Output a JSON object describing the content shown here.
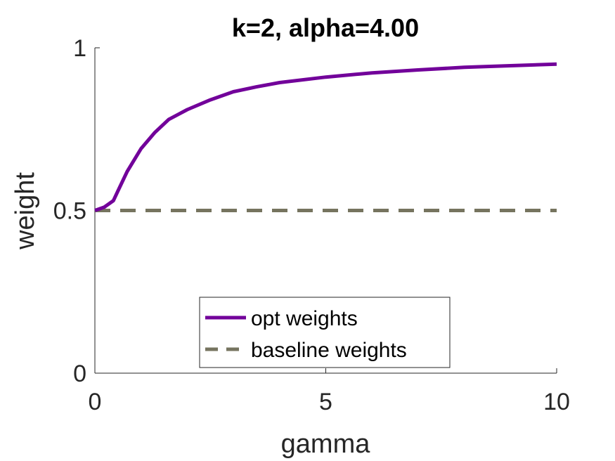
{
  "chart_data": {
    "type": "line",
    "title": "k=2, alpha=4.00",
    "xlabel": "gamma",
    "ylabel": "weight",
    "xlim": [
      0,
      10
    ],
    "ylim": [
      0,
      1
    ],
    "xticks": [
      0,
      5,
      10
    ],
    "xtick_labels": [
      "0",
      "5",
      "10"
    ],
    "yticks": [
      0,
      0.5,
      1
    ],
    "ytick_labels": [
      "0",
      "0.5",
      "1"
    ],
    "grid": false,
    "legend_position": "bottom-center",
    "series": [
      {
        "name": "opt weights",
        "style": "solid",
        "color": "#72019a",
        "x": [
          0,
          0.2,
          0.4,
          0.5,
          0.7,
          1.0,
          1.3,
          1.6,
          2.0,
          2.5,
          3.0,
          3.5,
          4.0,
          5.0,
          6.0,
          7.0,
          8.0,
          9.0,
          10.0
        ],
        "y": [
          0.5,
          0.51,
          0.53,
          0.56,
          0.62,
          0.69,
          0.74,
          0.78,
          0.81,
          0.84,
          0.865,
          0.88,
          0.893,
          0.91,
          0.923,
          0.932,
          0.94,
          0.945,
          0.95
        ]
      },
      {
        "name": "baseline weights",
        "style": "dashed",
        "color": "#76745f",
        "x": [
          0,
          10
        ],
        "y": [
          0.5,
          0.5
        ]
      }
    ]
  }
}
